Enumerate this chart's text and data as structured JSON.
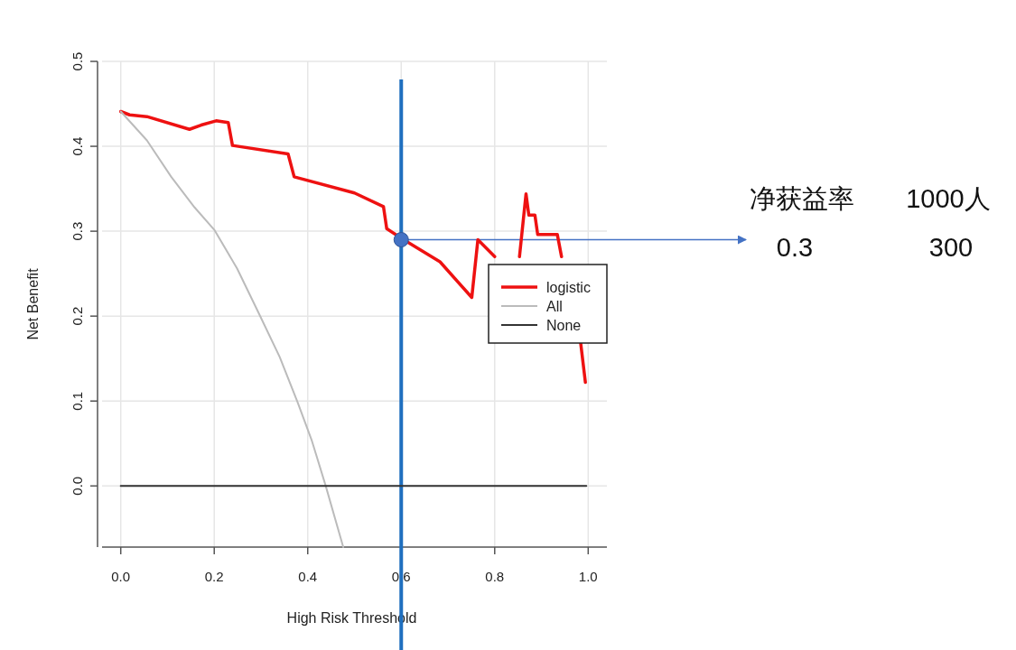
{
  "chart_data": {
    "type": "line",
    "xlabel": "High Risk Threshold",
    "ylabel": "Net Benefit",
    "xlim": [
      -0.04,
      1.04
    ],
    "ylim": [
      -0.072,
      0.5
    ],
    "xticks": [
      {
        "value": 0,
        "label": "0.0"
      },
      0.2,
      0.4,
      0.6,
      0.8,
      {
        "value": 1,
        "label": "1.0"
      }
    ],
    "yticks": [
      {
        "value": 0,
        "label": "0.0"
      },
      0.1,
      0.2,
      0.3,
      0.4,
      0.5
    ],
    "grid": true,
    "legend": "right",
    "series": [
      {
        "name": "logistic",
        "color": "#ee1111",
        "x": [
          0,
          0.019,
          0.056,
          0.147,
          0.172,
          0.204,
          0.23,
          0.239,
          0.358,
          0.371,
          0.5,
          0.562,
          0.569,
          0.602,
          0.683,
          0.751,
          0.764,
          0.8,
          null,
          0.853,
          0.867,
          0.873,
          0.886,
          0.892,
          0.934,
          0.943,
          null,
          0.984,
          0.994
        ],
        "values": [
          0.441,
          0.437,
          0.435,
          0.42,
          0.425,
          0.43,
          0.428,
          0.401,
          0.391,
          0.364,
          0.345,
          0.329,
          0.303,
          0.291,
          0.264,
          0.222,
          0.29,
          0.27,
          null,
          0.27,
          0.344,
          0.319,
          0.319,
          0.296,
          0.296,
          0.27,
          null,
          0.168,
          0.122
        ]
      },
      {
        "name": "All",
        "color": "#bbbbbb",
        "x": [
          0,
          0.056,
          0.108,
          0.158,
          0.201,
          0.249,
          0.293,
          0.34,
          0.378,
          0.409,
          0.438,
          0.476
        ],
        "values": [
          0.441,
          0.407,
          0.364,
          0.328,
          0.301,
          0.256,
          0.206,
          0.152,
          0.099,
          0.053,
          0.001,
          -0.072
        ]
      },
      {
        "name": "None",
        "color": "#333333",
        "x": [
          0,
          0.996
        ],
        "values": [
          0,
          0
        ]
      },
      {
        "type": "scatter",
        "marker": "circle",
        "color": "#4472c4",
        "x": [
          0.6
        ],
        "values": [
          0.29
        ]
      }
    ],
    "ref_lines": [
      {
        "axis": "x",
        "value": 0.6,
        "color": "#1f6fbf"
      }
    ],
    "annotations": [
      "净获益率",
      "1000人",
      {
        "text": "0.3",
        "x": 0.6,
        "y": 0.29
      },
      "300"
    ]
  }
}
